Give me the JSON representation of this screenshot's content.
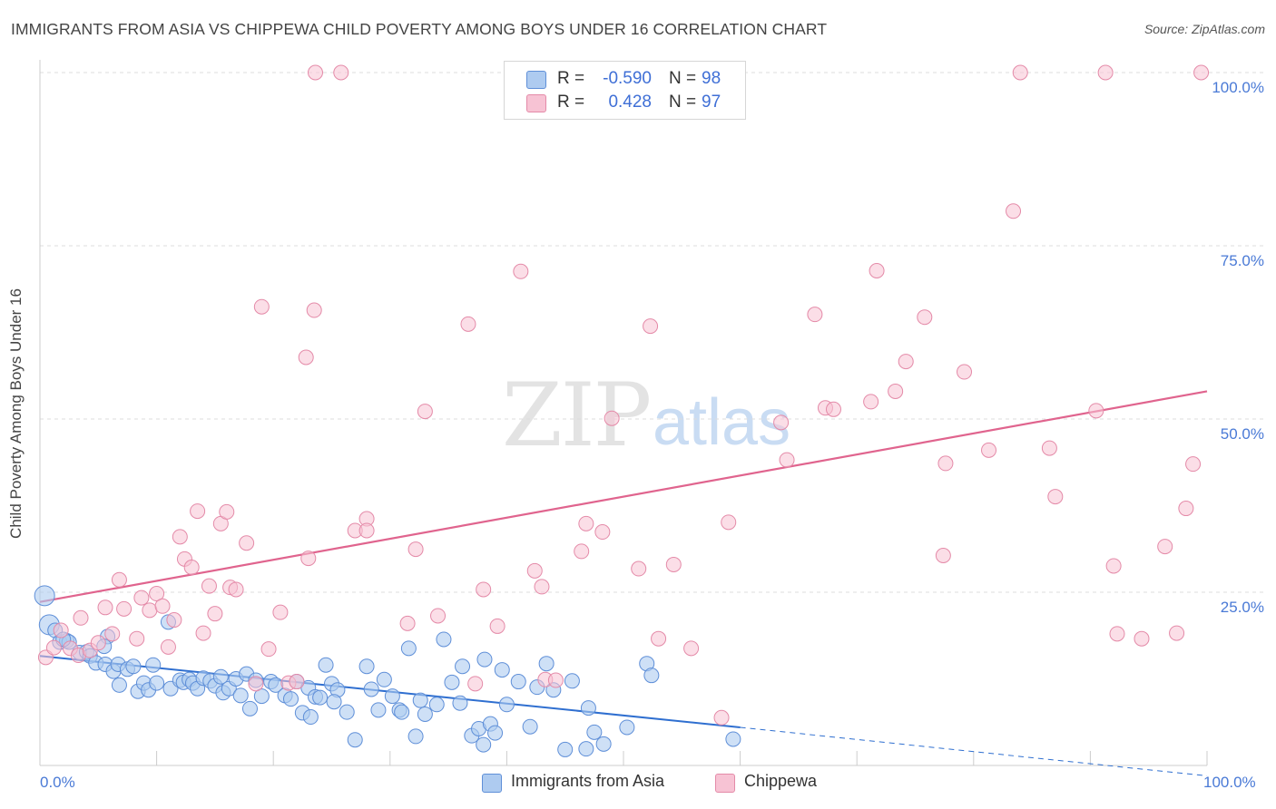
{
  "title": "IMMIGRANTS FROM ASIA VS CHIPPEWA CHILD POVERTY AMONG BOYS UNDER 16 CORRELATION CHART",
  "source": "Source: ZipAtlas.com",
  "watermark": {
    "zip": "ZIP",
    "atlas": "atlas"
  },
  "legend": {
    "series1": {
      "r_label": "R =",
      "r_value": "-0.590",
      "n_label": "N =",
      "n_value": "98"
    },
    "series2": {
      "r_label": "R =",
      "r_value": "0.428",
      "n_label": "N =",
      "n_value": "97"
    }
  },
  "bottom_legend": {
    "series1": "Immigrants from Asia",
    "series2": "Chippewa"
  },
  "colors": {
    "blue_fill": "#aecbf0",
    "blue_stroke": "#5f8fd8",
    "blue_line": "#2f6fd0",
    "pink_fill": "#f7c3d4",
    "pink_stroke": "#e48aa8",
    "pink_line": "#e0648e",
    "grid": "#dddddd",
    "axis_text": "#4a7ad6"
  },
  "chart_data": {
    "type": "scatter",
    "title": "IMMIGRANTS FROM ASIA VS CHIPPEWA CHILD POVERTY AMONG BOYS UNDER 16 CORRELATION CHART",
    "xlabel": "",
    "ylabel": "Child Poverty Among Boys Under 16",
    "xlim": [
      0,
      100
    ],
    "ylim": [
      0,
      100
    ],
    "x_tick_labels": [
      "0.0%",
      "100.0%"
    ],
    "y_tick_labels": [
      "25.0%",
      "50.0%",
      "75.0%",
      "100.0%"
    ],
    "y_ticks": [
      25,
      50,
      75,
      100
    ],
    "series": [
      {
        "name": "Immigrants from Asia",
        "color": "blue",
        "trend": {
          "x0": 0,
          "y0": 15.8,
          "x1": 60,
          "y1": 5.5,
          "dashed_to_x": 100,
          "dashed_to_y": -1.5
        },
        "points": [
          [
            0.4,
            24.5
          ],
          [
            0.8,
            20.3
          ],
          [
            1.3,
            19.5
          ],
          [
            1.7,
            17.8
          ],
          [
            2.3,
            18
          ],
          [
            2.5,
            17.8
          ],
          [
            3.4,
            16.3
          ],
          [
            4,
            16.4
          ],
          [
            4.3,
            15.8
          ],
          [
            4.8,
            14.8
          ],
          [
            5.6,
            14.6
          ],
          [
            5.8,
            18.6
          ],
          [
            6.3,
            13.6
          ],
          [
            6.7,
            14.6
          ],
          [
            6.8,
            11.6
          ],
          [
            7.5,
            13.9
          ],
          [
            8,
            14.3
          ],
          [
            8.4,
            10.7
          ],
          [
            8.9,
            11.9
          ],
          [
            9.3,
            10.9
          ],
          [
            9.7,
            14.5
          ],
          [
            10,
            11.9
          ],
          [
            11,
            20.7
          ],
          [
            11.2,
            11.1
          ],
          [
            12,
            12.3
          ],
          [
            12.3,
            12
          ],
          [
            12.8,
            12.4
          ],
          [
            13.1,
            11.9
          ],
          [
            13.5,
            11.1
          ],
          [
            14,
            12.6
          ],
          [
            14.6,
            12.2
          ],
          [
            15,
            11.5
          ],
          [
            15.5,
            12.8
          ],
          [
            15.7,
            10.5
          ],
          [
            16.2,
            11.1
          ],
          [
            16.8,
            12.5
          ],
          [
            17.2,
            10.1
          ],
          [
            17.7,
            13.2
          ],
          [
            18,
            8.2
          ],
          [
            18.5,
            12.3
          ],
          [
            19,
            10
          ],
          [
            19.8,
            12.1
          ],
          [
            20.2,
            11.6
          ],
          [
            21,
            10.1
          ],
          [
            21.5,
            9.6
          ],
          [
            22,
            12.1
          ],
          [
            22.5,
            7.6
          ],
          [
            23,
            11.2
          ],
          [
            23.6,
            9.9
          ],
          [
            24,
            9.8
          ],
          [
            24.5,
            14.5
          ],
          [
            25,
            11.8
          ],
          [
            25.5,
            10.9
          ],
          [
            26.3,
            7.7
          ],
          [
            27,
            3.7
          ],
          [
            28,
            14.3
          ],
          [
            28.4,
            11
          ],
          [
            29,
            8
          ],
          [
            29.5,
            12.4
          ],
          [
            30.2,
            10
          ],
          [
            30.8,
            8
          ],
          [
            31,
            7.7
          ],
          [
            31.6,
            16.9
          ],
          [
            32.2,
            4.2
          ],
          [
            32.6,
            9.4
          ],
          [
            33,
            7.4
          ],
          [
            34,
            8.8
          ],
          [
            34.6,
            18.2
          ],
          [
            35.3,
            12
          ],
          [
            36,
            9
          ],
          [
            36.2,
            14.3
          ],
          [
            37,
            4.3
          ],
          [
            37.6,
            5.3
          ],
          [
            38.1,
            15.3
          ],
          [
            38.6,
            6
          ],
          [
            39,
            4.7
          ],
          [
            39.6,
            13.8
          ],
          [
            40,
            8.8
          ],
          [
            41,
            12.1
          ],
          [
            42,
            5.6
          ],
          [
            42.6,
            11.3
          ],
          [
            43.4,
            14.7
          ],
          [
            44,
            10.9
          ],
          [
            45,
            2.3
          ],
          [
            45.6,
            12.2
          ],
          [
            46.8,
            2.4
          ],
          [
            47,
            8.3
          ],
          [
            47.5,
            4.8
          ],
          [
            48.3,
            3.1
          ],
          [
            50.3,
            5.5
          ],
          [
            52,
            14.7
          ],
          [
            52.4,
            13
          ],
          [
            59.4,
            3.8
          ],
          [
            2,
            18.2
          ],
          [
            5.5,
            17.2
          ],
          [
            25.2,
            9.2
          ],
          [
            38,
            3
          ],
          [
            23.2,
            7
          ]
        ]
      },
      {
        "name": "Chippewa",
        "color": "pink",
        "trend": {
          "x0": 0,
          "y0": 23.6,
          "x1": 100,
          "y1": 54
        },
        "points": [
          [
            0.5,
            15.6
          ],
          [
            1.2,
            17
          ],
          [
            1.8,
            19.5
          ],
          [
            2.6,
            16.9
          ],
          [
            3.3,
            15.9
          ],
          [
            3.5,
            21.3
          ],
          [
            4.3,
            16.6
          ],
          [
            5,
            17.7
          ],
          [
            5.6,
            22.8
          ],
          [
            6.2,
            19
          ],
          [
            6.8,
            26.8
          ],
          [
            7.2,
            22.6
          ],
          [
            8.3,
            18.3
          ],
          [
            8.7,
            24.2
          ],
          [
            9.4,
            22.4
          ],
          [
            10,
            24.8
          ],
          [
            10.5,
            23
          ],
          [
            11,
            17.1
          ],
          [
            11.5,
            21
          ],
          [
            12,
            33
          ],
          [
            12.4,
            29.8
          ],
          [
            13,
            28.6
          ],
          [
            13.5,
            36.7
          ],
          [
            14,
            19.1
          ],
          [
            14.5,
            25.9
          ],
          [
            15,
            21.9
          ],
          [
            15.5,
            34.9
          ],
          [
            16,
            36.6
          ],
          [
            16.3,
            25.7
          ],
          [
            16.8,
            25.4
          ],
          [
            17.7,
            32.1
          ],
          [
            18.5,
            11.8
          ],
          [
            19,
            66.2
          ],
          [
            19.6,
            16.8
          ],
          [
            20.6,
            22.1
          ],
          [
            21.3,
            11.9
          ],
          [
            22,
            12.1
          ],
          [
            22.8,
            58.9
          ],
          [
            23,
            29.9
          ],
          [
            23.5,
            65.7
          ],
          [
            23.6,
            100
          ],
          [
            25.8,
            100
          ],
          [
            27,
            33.9
          ],
          [
            28,
            35.6
          ],
          [
            28,
            33.9
          ],
          [
            31.5,
            20.5
          ],
          [
            32.2,
            31.2
          ],
          [
            33,
            51.1
          ],
          [
            34.1,
            21.6
          ],
          [
            36.7,
            63.7
          ],
          [
            37.3,
            11.8
          ],
          [
            38,
            25.4
          ],
          [
            39.2,
            20.1
          ],
          [
            41.2,
            71.3
          ],
          [
            42.4,
            28.1
          ],
          [
            43,
            25.8
          ],
          [
            43.3,
            12.4
          ],
          [
            44.2,
            12.3
          ],
          [
            46.4,
            30.9
          ],
          [
            46.8,
            34.9
          ],
          [
            48.2,
            33.7
          ],
          [
            49,
            50.1
          ],
          [
            51.3,
            28.4
          ],
          [
            52.3,
            63.4
          ],
          [
            53,
            18.3
          ],
          [
            54.3,
            29
          ],
          [
            55.8,
            16.9
          ],
          [
            58.4,
            6.9
          ],
          [
            59,
            35.1
          ],
          [
            63.5,
            49.5
          ],
          [
            64,
            44.1
          ],
          [
            66.4,
            65.1
          ],
          [
            67.3,
            51.6
          ],
          [
            68,
            51.4
          ],
          [
            71.2,
            52.5
          ],
          [
            71.7,
            71.4
          ],
          [
            73.3,
            54
          ],
          [
            74.2,
            58.3
          ],
          [
            75.8,
            64.7
          ],
          [
            77.4,
            30.3
          ],
          [
            77.6,
            43.6
          ],
          [
            79.2,
            56.8
          ],
          [
            81.3,
            45.5
          ],
          [
            83.4,
            80
          ],
          [
            84,
            100
          ],
          [
            86.5,
            45.8
          ],
          [
            87,
            38.8
          ],
          [
            90.5,
            51.2
          ],
          [
            91.3,
            100
          ],
          [
            92,
            28.8
          ],
          [
            92.3,
            19
          ],
          [
            94.4,
            18.3
          ],
          [
            96.4,
            31.6
          ],
          [
            97.4,
            19.1
          ],
          [
            98.2,
            37.1
          ],
          [
            98.8,
            43.5
          ],
          [
            99.5,
            100
          ]
        ]
      }
    ]
  }
}
